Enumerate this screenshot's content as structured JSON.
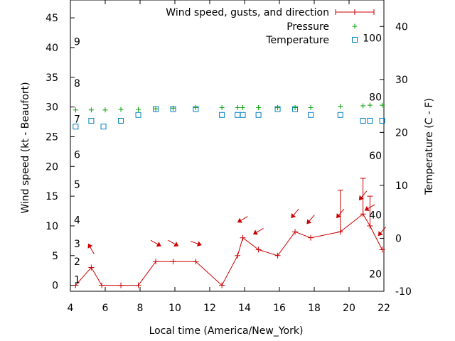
{
  "chart_data": {
    "type": "line",
    "xlabel": "Local time (America/New_York)",
    "ylabel": "Wind speed (kt - Beaufort)",
    "y2label": "Temperature (C - F)",
    "xlim": [
      4,
      22
    ],
    "ylim": [
      -1,
      48
    ],
    "y2lim": [
      -10,
      45
    ],
    "x_ticks": [
      4,
      6,
      8,
      10,
      12,
      14,
      16,
      18,
      20,
      22
    ],
    "y_ticks": [
      0,
      5,
      10,
      15,
      20,
      25,
      30,
      35,
      40,
      45
    ],
    "y2_ticks": [
      -10,
      0,
      10,
      20,
      30,
      40
    ],
    "beaufort_labels": [
      {
        "label": "1",
        "y": 1
      },
      {
        "label": "2",
        "y": 4
      },
      {
        "label": "3",
        "y": 7
      },
      {
        "label": "4",
        "y": 11
      },
      {
        "label": "5",
        "y": 17
      },
      {
        "label": "6",
        "y": 22
      },
      {
        "label": "7",
        "y": 28
      },
      {
        "label": "8",
        "y": 34
      },
      {
        "label": "9",
        "y": 41
      }
    ],
    "fahrenheit_labels": [
      {
        "label": "20",
        "y2": -6.7
      },
      {
        "label": "40",
        "y2": 4.4
      },
      {
        "label": "60",
        "y2": 15.6
      },
      {
        "label": "80",
        "y2": 26.7
      },
      {
        "label": "100",
        "y2": 37.8
      }
    ],
    "legend": {
      "position": "top-right",
      "entries": [
        "Wind speed, gusts, and direction",
        "Pressure",
        "Temperature"
      ]
    },
    "colors": {
      "wind": "#cc0000",
      "pressure": "#00a000",
      "temperature": "#0080c0"
    },
    "series": [
      {
        "name": "Wind speed, gusts, and direction",
        "points": [
          {
            "x": 4.3,
            "y": 0
          },
          {
            "x": 5.2,
            "y": 3,
            "dir": 150
          },
          {
            "x": 5.8,
            "y": 0
          },
          {
            "x": 6.9,
            "y": 0
          },
          {
            "x": 7.9,
            "y": 0
          },
          {
            "x": 8.9,
            "y": 4,
            "dir": 300
          },
          {
            "x": 9.9,
            "y": 4,
            "dir": 300
          },
          {
            "x": 11.2,
            "y": 4,
            "dir": 290
          },
          {
            "x": 12.7,
            "y": 0
          },
          {
            "x": 13.6,
            "y": 5
          },
          {
            "x": 13.9,
            "y": 8,
            "dir": 60
          },
          {
            "x": 14.8,
            "y": 6,
            "dir": 60
          },
          {
            "x": 15.9,
            "y": 5
          },
          {
            "x": 16.9,
            "y": 9,
            "dir": 40
          },
          {
            "x": 17.8,
            "y": 8,
            "dir": 40
          },
          {
            "x": 19.5,
            "y": 9,
            "gust": 16,
            "dir": 40
          },
          {
            "x": 20.8,
            "y": 12,
            "gust": 18,
            "dir": 40
          },
          {
            "x": 21.2,
            "y": 10,
            "gust": 15,
            "dir": 60
          },
          {
            "x": 21.9,
            "y": 6,
            "dir": 40
          }
        ]
      },
      {
        "name": "Pressure",
        "x": [
          4.3,
          5.2,
          6.0,
          6.9,
          7.9,
          8.9,
          9.9,
          11.2,
          12.7,
          13.6,
          13.9,
          14.8,
          15.9,
          16.9,
          17.8,
          19.5,
          20.8,
          21.2,
          21.9
        ],
        "y": [
          29.5,
          29.5,
          29.5,
          29.6,
          29.6,
          29.7,
          29.8,
          29.9,
          29.9,
          29.9,
          29.9,
          29.9,
          29.9,
          29.9,
          29.9,
          30.1,
          30.2,
          30.3,
          30.3
        ]
      },
      {
        "name": "Temperature",
        "x": [
          4.3,
          5.2,
          5.9,
          6.9,
          7.9,
          8.9,
          9.9,
          11.2,
          12.7,
          13.6,
          13.9,
          14.8,
          15.9,
          16.9,
          17.8,
          19.5,
          20.8,
          21.2,
          21.9
        ],
        "y": [
          21.1,
          22.2,
          21.1,
          22.2,
          23.3,
          24.4,
          24.4,
          24.4,
          23.3,
          23.3,
          23.3,
          23.3,
          24.4,
          24.4,
          23.3,
          23.3,
          22.2,
          22.2,
          22.2
        ]
      }
    ]
  }
}
